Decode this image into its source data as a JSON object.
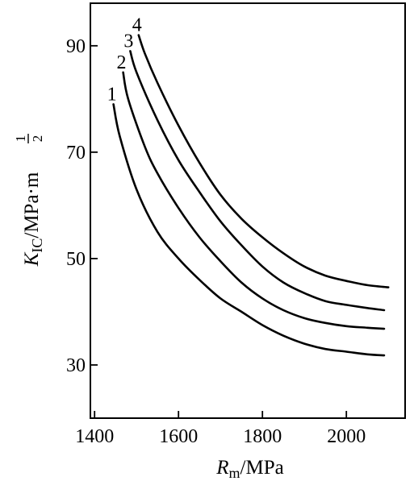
{
  "chart_data": {
    "type": "line",
    "xlabel": {
      "main": "R",
      "sub": "m",
      "unit": "/MPa"
    },
    "ylabel": {
      "main": "K",
      "sub": "IC",
      "unit": "/MPa·m",
      "exp_num": "1",
      "exp_den": "2"
    },
    "xlim": [
      1390,
      2140
    ],
    "ylim": [
      20,
      98
    ],
    "xticks": [
      1400,
      1600,
      1800,
      2000
    ],
    "yticks": [
      30,
      50,
      70,
      90
    ],
    "grid": false,
    "series": [
      {
        "name": "1",
        "points": [
          [
            1445,
            79
          ],
          [
            1460,
            73
          ],
          [
            1500,
            63
          ],
          [
            1550,
            55
          ],
          [
            1600,
            50
          ],
          [
            1650,
            46
          ],
          [
            1700,
            42.5
          ],
          [
            1750,
            40
          ],
          [
            1800,
            37.5
          ],
          [
            1850,
            35.5
          ],
          [
            1900,
            34
          ],
          [
            1950,
            33
          ],
          [
            2000,
            32.5
          ],
          [
            2050,
            32
          ],
          [
            2090,
            31.8
          ]
        ]
      },
      {
        "name": "2",
        "points": [
          [
            1468,
            85
          ],
          [
            1480,
            80
          ],
          [
            1520,
            71
          ],
          [
            1550,
            66
          ],
          [
            1600,
            59.5
          ],
          [
            1650,
            54
          ],
          [
            1700,
            49.5
          ],
          [
            1750,
            45.5
          ],
          [
            1800,
            42.5
          ],
          [
            1850,
            40.3
          ],
          [
            1900,
            38.8
          ],
          [
            1950,
            37.9
          ],
          [
            2000,
            37.3
          ],
          [
            2050,
            37
          ],
          [
            2090,
            36.8
          ]
        ]
      },
      {
        "name": "3",
        "points": [
          [
            1485,
            89
          ],
          [
            1500,
            85
          ],
          [
            1550,
            76
          ],
          [
            1600,
            68.5
          ],
          [
            1650,
            62.5
          ],
          [
            1700,
            57
          ],
          [
            1750,
            52.5
          ],
          [
            1800,
            48.5
          ],
          [
            1850,
            45.5
          ],
          [
            1900,
            43.5
          ],
          [
            1950,
            42
          ],
          [
            2000,
            41.3
          ],
          [
            2050,
            40.7
          ],
          [
            2090,
            40.3
          ]
        ]
      },
      {
        "name": "4",
        "points": [
          [
            1505,
            92
          ],
          [
            1520,
            88.5
          ],
          [
            1550,
            83
          ],
          [
            1600,
            75
          ],
          [
            1650,
            68
          ],
          [
            1700,
            62
          ],
          [
            1750,
            57.5
          ],
          [
            1800,
            54
          ],
          [
            1850,
            51
          ],
          [
            1900,
            48.5
          ],
          [
            1950,
            46.8
          ],
          [
            2000,
            45.8
          ],
          [
            2050,
            45
          ],
          [
            2100,
            44.6
          ]
        ]
      }
    ]
  }
}
